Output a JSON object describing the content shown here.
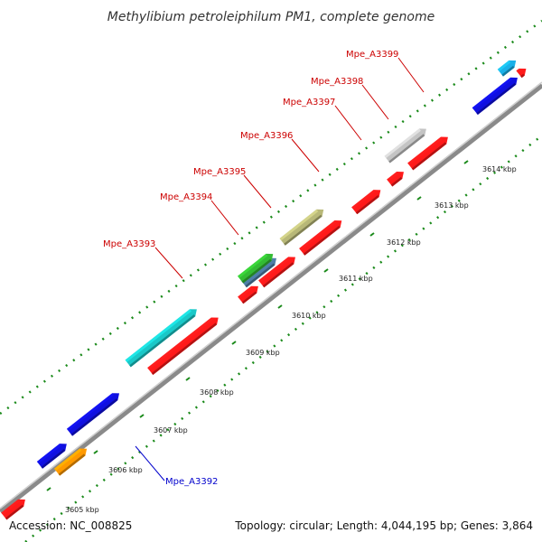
{
  "title": "Methylibium petroleiphilum PM1, complete genome",
  "footer": {
    "accession": "Accession: NC_008825",
    "summary": "Topology: circular; Length: 4,044,195 bp; Genes: 3,864"
  },
  "ticks": [
    "3605 kbp",
    "3606 kbp",
    "3607 kbp",
    "3608 kbp",
    "3609 kbp",
    "3610 kbp",
    "3611 kbp",
    "3612 kbp",
    "3613 kbp",
    "3614 kbp"
  ],
  "gene_labels": [
    {
      "name": "Mpe_A3392",
      "color": "#0000cc"
    },
    {
      "name": "Mpe_A3393",
      "color": "#cc0000"
    },
    {
      "name": "Mpe_A3394",
      "color": "#cc0000"
    },
    {
      "name": "Mpe_A3395",
      "color": "#cc0000"
    },
    {
      "name": "Mpe_A3396",
      "color": "#cc0000"
    },
    {
      "name": "Mpe_A3397",
      "color": "#cc0000"
    },
    {
      "name": "Mpe_A3398",
      "color": "#cc0000"
    },
    {
      "name": "Mpe_A3399",
      "color": "#cc0000"
    }
  ],
  "colors": {
    "backbone": "#8a8a8a",
    "dots": "#1a8a1a",
    "cds": "#ff1a1a",
    "blue": "#1010e0",
    "cyan": "#1ac8c8",
    "olive": "#b8b878",
    "green": "#33bb33",
    "steel": "#4f7fa8",
    "grey": "#c4c4c4",
    "orange": "#ff9900",
    "sky": "#1ab0e8"
  }
}
